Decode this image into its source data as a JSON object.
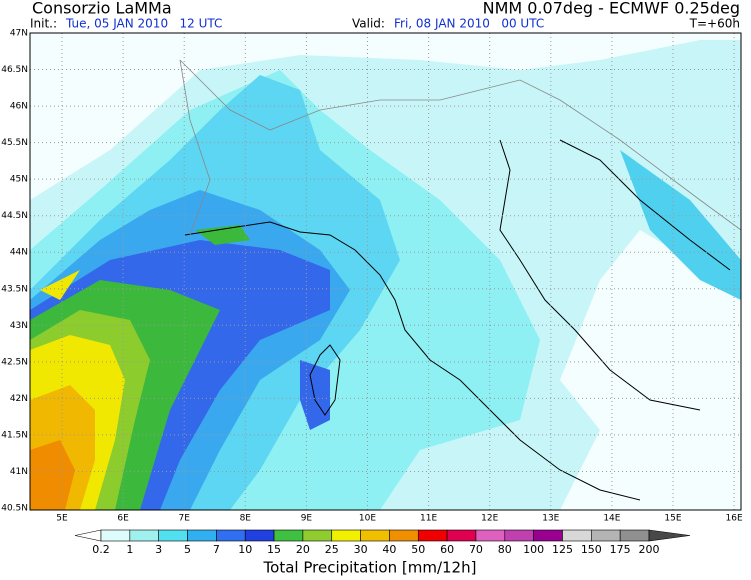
{
  "header": {
    "source": "Consorzio LaMMa",
    "model": "NMM 0.07deg - ECMWF 0.25deg",
    "init_label": "Init.:",
    "init_time": "Tue, 05 JAN 2010   12 UTC",
    "valid_label": "Valid:",
    "valid_time": "Fri, 08 JAN 2010   00 UTC",
    "lead": "T=+60h"
  },
  "map": {
    "lat_labels": [
      "47N",
      "46.5N",
      "46N",
      "45.5N",
      "45N",
      "44.5N",
      "44N",
      "43.5N",
      "43N",
      "42.5N",
      "42N",
      "41.5N",
      "41N",
      "40.5N"
    ],
    "lon_labels": [
      "5E",
      "6E",
      "7E",
      "8E",
      "9E",
      "10E",
      "11E",
      "12E",
      "13E",
      "14E",
      "15E",
      "16E"
    ]
  },
  "colorbar": {
    "labels": [
      "0.2",
      "1",
      "3",
      "5",
      "7",
      "10",
      "15",
      "20",
      "25",
      "30",
      "40",
      "50",
      "60",
      "70",
      "80",
      "100",
      "125",
      "150",
      "175",
      "200"
    ],
    "title": "Total Precipitation [mm/12h]"
  }
}
